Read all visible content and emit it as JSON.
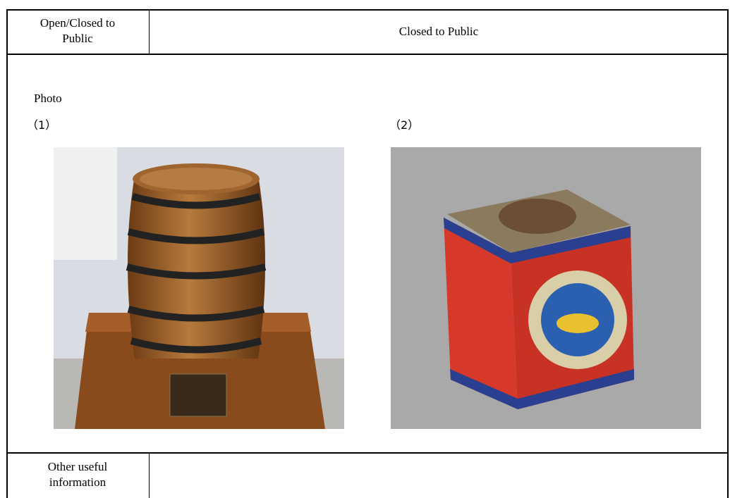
{
  "table": {
    "rows": [
      {
        "label": "Open/Closed to Public",
        "value": "Closed to Public"
      },
      {
        "label": "Other useful information"
      }
    ]
  },
  "photo_section": {
    "title": "Photo",
    "photos": [
      {
        "caption": "（1）"
      },
      {
        "caption": "（2）"
      }
    ]
  }
}
